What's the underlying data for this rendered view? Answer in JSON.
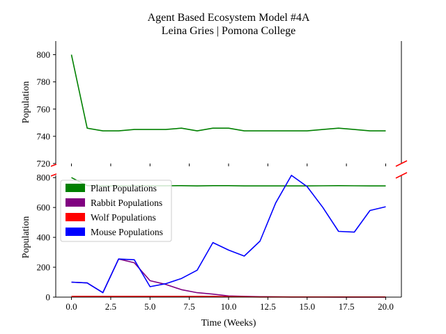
{
  "chart_data": {
    "type": "line",
    "title": "Agent Based Ecosystem Model #4A",
    "subtitle": "Leina Gries | Pomona College",
    "xlabel": "Time (Weeks)",
    "ylabel": "Population",
    "x": [
      0,
      1,
      2,
      3,
      4,
      5,
      6,
      7,
      8,
      9,
      10,
      11,
      12,
      13,
      14,
      15,
      16,
      17,
      18,
      19,
      20
    ],
    "xlim": [
      -1,
      21
    ],
    "xticks": [
      0.0,
      2.5,
      5.0,
      7.5,
      10.0,
      12.5,
      15.0,
      17.5,
      20.0
    ],
    "xtick_labels": [
      "0.0",
      "2.5",
      "5.0",
      "7.5",
      "10.0",
      "12.5",
      "15.0",
      "17.5",
      "20.0"
    ],
    "panels": [
      {
        "name": "top",
        "ylim": [
          720,
          810
        ],
        "yticks": [
          720,
          740,
          760,
          780,
          800
        ],
        "series": [
          "Plant Populations"
        ]
      },
      {
        "name": "bottom",
        "ylim": [
          0,
          815
        ],
        "yticks": [
          0,
          200,
          400,
          600,
          800
        ],
        "series": [
          "Plant Populations",
          "Rabbit Populations",
          "Wolf Populations",
          "Mouse Populations"
        ]
      }
    ],
    "legend_position": "upper-left of bottom panel",
    "broken_axis": true,
    "grid": false,
    "series": [
      {
        "name": "Plant Populations",
        "color": "#008000",
        "values": [
          800,
          746,
          744,
          744,
          745,
          745,
          745,
          746,
          744,
          746,
          746,
          744,
          744,
          744,
          744,
          744,
          745,
          746,
          745,
          744,
          744
        ]
      },
      {
        "name": "Rabbit Populations",
        "color": "#800080",
        "values": [
          100,
          95,
          30,
          255,
          230,
          110,
          85,
          50,
          30,
          20,
          8,
          5,
          3,
          2,
          1,
          1,
          1,
          0,
          0,
          0,
          0
        ]
      },
      {
        "name": "Wolf Populations",
        "color": "#ff0000",
        "values": [
          5,
          5,
          5,
          5,
          5,
          5,
          5,
          5,
          5,
          5,
          3,
          2,
          1,
          1,
          1,
          1,
          1,
          1,
          1,
          1,
          1
        ]
      },
      {
        "name": "Mouse Populations",
        "color": "#0000ff",
        "values": [
          100,
          95,
          30,
          255,
          250,
          70,
          90,
          125,
          180,
          365,
          315,
          275,
          375,
          630,
          815,
          740,
          600,
          440,
          435,
          580,
          605
        ]
      }
    ]
  }
}
